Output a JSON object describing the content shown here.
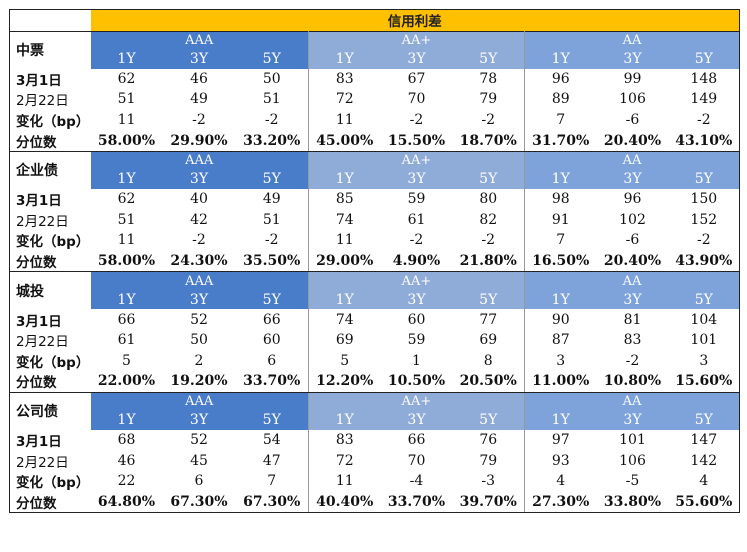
{
  "title": "信用利差",
  "tiers": [
    "AAA",
    "AA+",
    "AA"
  ],
  "tenors": [
    "1Y",
    "3Y",
    "5Y"
  ],
  "row_labels": {
    "current": "3月1日",
    "previous": "2月22日",
    "change": "变化（bp）",
    "percentile": "分位数"
  },
  "sections": [
    {
      "name": "中票",
      "current": [
        "62",
        "46",
        "50",
        "83",
        "67",
        "78",
        "96",
        "99",
        "148"
      ],
      "previous": [
        "51",
        "49",
        "51",
        "72",
        "70",
        "79",
        "89",
        "106",
        "149"
      ],
      "change": [
        "11",
        "-2",
        "-2",
        "11",
        "-2",
        "-2",
        "7",
        "-6",
        "-2"
      ],
      "percentile": [
        "58.00%",
        "29.90%",
        "33.20%",
        "45.00%",
        "15.50%",
        "18.70%",
        "31.70%",
        "20.40%",
        "43.10%"
      ]
    },
    {
      "name": "企业债",
      "current": [
        "62",
        "40",
        "49",
        "85",
        "59",
        "80",
        "98",
        "96",
        "150"
      ],
      "previous": [
        "51",
        "42",
        "51",
        "74",
        "61",
        "82",
        "91",
        "102",
        "152"
      ],
      "change": [
        "11",
        "-2",
        "-2",
        "11",
        "-2",
        "-2",
        "7",
        "-6",
        "-2"
      ],
      "percentile": [
        "58.00%",
        "24.30%",
        "35.50%",
        "29.00%",
        "4.90%",
        "21.80%",
        "16.50%",
        "20.40%",
        "43.90%"
      ]
    },
    {
      "name": "城投",
      "current": [
        "66",
        "52",
        "66",
        "74",
        "60",
        "77",
        "90",
        "81",
        "104"
      ],
      "previous": [
        "61",
        "50",
        "60",
        "69",
        "59",
        "69",
        "87",
        "83",
        "101"
      ],
      "change": [
        "5",
        "2",
        "6",
        "5",
        "1",
        "8",
        "3",
        "-2",
        "3"
      ],
      "percentile": [
        "22.00%",
        "19.20%",
        "33.70%",
        "12.20%",
        "10.50%",
        "20.50%",
        "11.00%",
        "10.80%",
        "15.60%"
      ]
    },
    {
      "name": "公司债",
      "current": [
        "68",
        "52",
        "54",
        "83",
        "66",
        "76",
        "97",
        "101",
        "147"
      ],
      "previous": [
        "46",
        "45",
        "47",
        "72",
        "70",
        "79",
        "93",
        "106",
        "142"
      ],
      "change": [
        "22",
        "6",
        "7",
        "11",
        "-4",
        "-3",
        "4",
        "-5",
        "4"
      ],
      "percentile": [
        "64.80%",
        "67.30%",
        "67.30%",
        "40.40%",
        "33.70%",
        "39.70%",
        "27.30%",
        "33.80%",
        "55.60%"
      ]
    }
  ],
  "colors": {
    "title_bg": "#ffc000",
    "aaa_bg": "#4a7dc9",
    "aa_plus_bg": "#8fabd8",
    "aa_bg": "#7ea3db"
  }
}
